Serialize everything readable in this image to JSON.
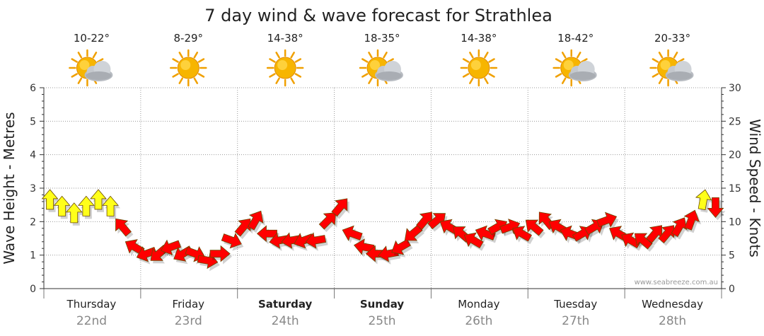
{
  "chart_data": {
    "type": "line",
    "title": "7 day wind & wave forecast for Strathlea",
    "ylabel_left": "Wave Height - Metres",
    "ylabel_right": "Wind Speed - Knots",
    "ylim_left": [
      0,
      6
    ],
    "ylim_right": [
      0,
      30
    ],
    "yticks_left": [
      "0",
      "1",
      "2",
      "3",
      "4",
      "5",
      "6"
    ],
    "yticks_right": [
      "0",
      "5",
      "10",
      "15",
      "20",
      "25",
      "30"
    ],
    "grid": true,
    "credit": "www.seabreeze.com.au",
    "days": [
      {
        "name": "Thursday",
        "date": "22nd",
        "temp": "10-22°",
        "weather": "partly-cloudy",
        "bold": false
      },
      {
        "name": "Friday",
        "date": "23rd",
        "temp": "8-29°",
        "weather": "sunny",
        "bold": false
      },
      {
        "name": "Saturday",
        "date": "24th",
        "temp": "14-38°",
        "weather": "sunny",
        "bold": true
      },
      {
        "name": "Sunday",
        "date": "25th",
        "temp": "18-35°",
        "weather": "partly-cloudy",
        "bold": true
      },
      {
        "name": "Monday",
        "date": "26th",
        "temp": "14-38°",
        "weather": "sunny",
        "bold": false
      },
      {
        "name": "Tuesday",
        "date": "27th",
        "temp": "18-42°",
        "weather": "partly-cloudy",
        "bold": false
      },
      {
        "name": "Wednesday",
        "date": "28th",
        "temp": "20-33°",
        "weather": "partly-cloudy",
        "bold": false
      }
    ],
    "series": [
      {
        "name": "wind",
        "x_hours": [
          0,
          3,
          6,
          9,
          12,
          15,
          18,
          21,
          24,
          27,
          30,
          33,
          36,
          39,
          42,
          45,
          48,
          51,
          54,
          57,
          60,
          63,
          66,
          69,
          72,
          75,
          78,
          81,
          84,
          87,
          90,
          93,
          96,
          99,
          102,
          105,
          108,
          111,
          114,
          117,
          120,
          123,
          126,
          129,
          132,
          135,
          138,
          141,
          144,
          147,
          150,
          153,
          156,
          159,
          162,
          165
        ],
        "knots": [
          13,
          12,
          11,
          12,
          13,
          12,
          9,
          6,
          5,
          5,
          6,
          5,
          5,
          4,
          5,
          7,
          9,
          10,
          8,
          7,
          7,
          7,
          7,
          10,
          12,
          8,
          6,
          5,
          5,
          6,
          8,
          10,
          10,
          9,
          8,
          7,
          8,
          9,
          9,
          8,
          9,
          10,
          9,
          8,
          8,
          9,
          10,
          8,
          7,
          7,
          8,
          8,
          9,
          10,
          13,
          12
        ],
        "direction": [
          0,
          0,
          0,
          0,
          0,
          0,
          320,
          300,
          250,
          230,
          250,
          240,
          110,
          100,
          90,
          110,
          40,
          30,
          270,
          260,
          260,
          250,
          260,
          45,
          40,
          290,
          280,
          270,
          260,
          240,
          230,
          40,
          50,
          300,
          310,
          300,
          290,
          60,
          70,
          300,
          310,
          320,
          300,
          290,
          60,
          60,
          70,
          300,
          300,
          310,
          40,
          40,
          30,
          20,
          10,
          180
        ],
        "strength": [
          "y",
          "y",
          "y",
          "y",
          "y",
          "y",
          "r",
          "r",
          "r",
          "r",
          "r",
          "r",
          "r",
          "r",
          "r",
          "r",
          "r",
          "r",
          "r",
          "r",
          "r",
          "r",
          "r",
          "r",
          "r",
          "r",
          "r",
          "r",
          "r",
          "r",
          "r",
          "r",
          "r",
          "r",
          "r",
          "r",
          "r",
          "r",
          "r",
          "r",
          "r",
          "r",
          "r",
          "r",
          "r",
          "r",
          "r",
          "r",
          "r",
          "r",
          "r",
          "r",
          "r",
          "r",
          "y",
          "r"
        ]
      }
    ],
    "colors": {
      "light": "#ffff1a",
      "strong": "#ff0000",
      "outline": "#6b4a00",
      "grid": "#9a9a9a",
      "axis": "#333333"
    }
  }
}
